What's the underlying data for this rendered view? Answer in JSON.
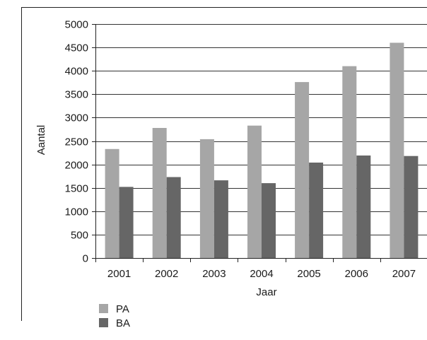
{
  "chart_data": {
    "type": "bar",
    "categories": [
      "2001",
      "2002",
      "2003",
      "2004",
      "2005",
      "2006",
      "2007"
    ],
    "series": [
      {
        "name": "PA",
        "color": "#a6a6a6",
        "values": [
          2330,
          2780,
          2540,
          2830,
          3760,
          4100,
          4600
        ]
      },
      {
        "name": "BA",
        "color": "#666666",
        "values": [
          1520,
          1730,
          1660,
          1600,
          2040,
          2190,
          2180
        ]
      }
    ],
    "xlabel": "Jaar",
    "ylabel": "Aantal",
    "ylim": [
      0,
      5000
    ],
    "yticks": [
      0,
      500,
      1000,
      1500,
      2000,
      2500,
      3000,
      3500,
      4000,
      4500,
      5000
    ],
    "grid": true,
    "legend": "bottom-left"
  }
}
